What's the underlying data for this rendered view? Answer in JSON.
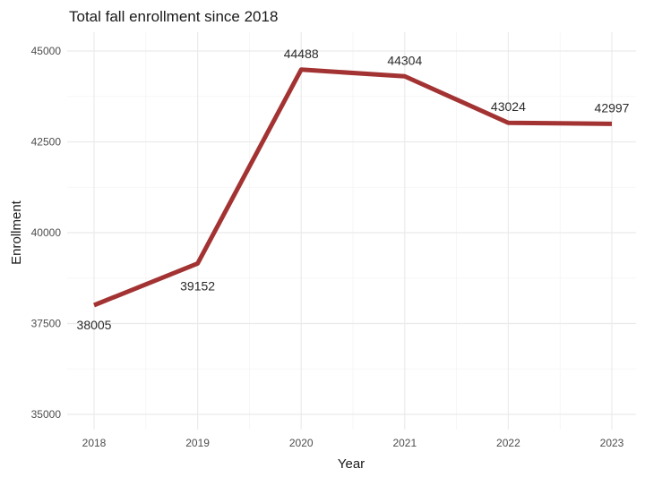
{
  "chart_data": {
    "type": "line",
    "title": "Total fall enrollment since 2018",
    "xlabel": "Year",
    "ylabel": "Enrollment",
    "categories": [
      "2018",
      "2019",
      "2020",
      "2021",
      "2022",
      "2023"
    ],
    "x": [
      2018,
      2019,
      2020,
      2021,
      2022,
      2023
    ],
    "series": [
      {
        "name": "Enrollment",
        "values": [
          38005,
          39152,
          44488,
          44304,
          43024,
          42997
        ],
        "color": "#a33333"
      }
    ],
    "data_labels": [
      "38005",
      "39152",
      "44488",
      "44304",
      "43024",
      "42997"
    ],
    "yticks": [
      35000,
      37500,
      40000,
      42500,
      45000
    ],
    "ytick_labels": [
      "35000",
      "37500",
      "40000",
      "42500",
      "45000"
    ],
    "ylim": [
      34600,
      45500
    ],
    "grid": true,
    "legend": "none"
  }
}
